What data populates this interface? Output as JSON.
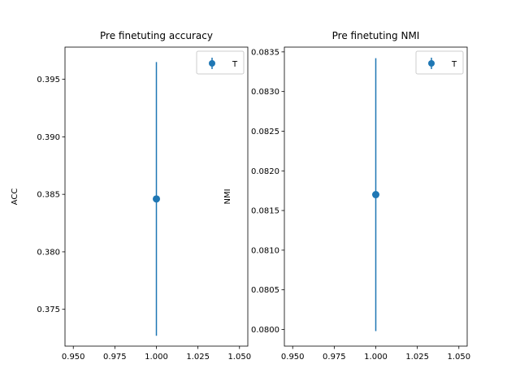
{
  "chart_data": [
    {
      "type": "scatter",
      "title": "Pre finetuting accuracy",
      "xlabel": "",
      "ylabel": "ACC",
      "xlim": [
        0.945,
        1.055
      ],
      "ylim": [
        0.3718,
        0.3978
      ],
      "xticks": [
        0.95,
        0.975,
        1.0,
        1.025,
        1.05
      ],
      "xtick_labels": [
        "0.950",
        "0.975",
        "1.000",
        "1.025",
        "1.050"
      ],
      "yticks": [
        0.375,
        0.38,
        0.385,
        0.39,
        0.395
      ],
      "ytick_labels": [
        "0.375",
        "0.380",
        "0.385",
        "0.390",
        "0.395"
      ],
      "series": [
        {
          "name": "T",
          "color": "#1f77b4",
          "x": [
            1.0
          ],
          "y": [
            0.3846
          ],
          "yerr": [
            0.0119
          ]
        }
      ],
      "legend": {
        "position": "top-right",
        "entries": [
          "T"
        ]
      },
      "grid": false
    },
    {
      "type": "scatter",
      "title": "Pre finetuting NMI",
      "xlabel": "",
      "ylabel": "NMI",
      "xlim": [
        0.945,
        1.055
      ],
      "ylim": [
        0.07979,
        0.08356
      ],
      "xticks": [
        0.95,
        0.975,
        1.0,
        1.025,
        1.05
      ],
      "xtick_labels": [
        "0.950",
        "0.975",
        "1.000",
        "1.025",
        "1.050"
      ],
      "yticks": [
        0.08,
        0.0805,
        0.081,
        0.0815,
        0.082,
        0.0825,
        0.083,
        0.0835
      ],
      "ytick_labels": [
        "0.0800",
        "0.0805",
        "0.0810",
        "0.0815",
        "0.0820",
        "0.0825",
        "0.0830",
        "0.0835"
      ],
      "series": [
        {
          "name": "T",
          "color": "#1f77b4",
          "x": [
            1.0
          ],
          "y": [
            0.0817
          ],
          "yerr": [
            0.00172
          ]
        }
      ],
      "legend": {
        "position": "top-right",
        "entries": [
          "T"
        ]
      },
      "grid": false
    }
  ]
}
